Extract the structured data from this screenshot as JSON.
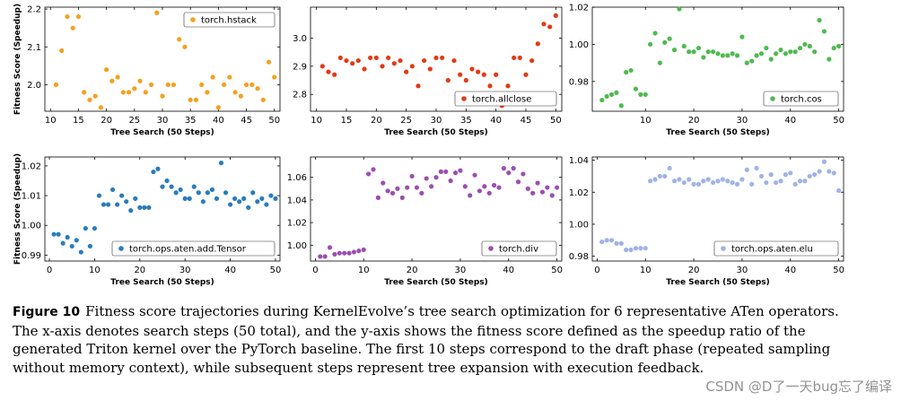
{
  "caption": {
    "label": "Figure 10",
    "text": "Fitness score trajectories during KernelEvolve’s tree search optimization for 6 representative ATen operators. The x-axis denotes search steps (50 total), and the y-axis shows the fitness score defined as the speedup ratio of the generated Triton kernel over the PyTorch baseline. The first 10 steps correspond to the draft phase (repeated sampling without memory context), while subsequent steps represent tree expansion with execution feedback."
  },
  "watermark": "CSDN @D了一天bug忘了编译",
  "chart_data": [
    {
      "type": "scatter",
      "name": "torch.hstack",
      "color": "#f5a01d",
      "xlabel": "Tree Search (50 Steps)",
      "ylabel": "Fitness Score (Speedup)",
      "xlim": [
        9,
        51
      ],
      "ylim": [
        1.93,
        2.205
      ],
      "xticks": [
        10,
        15,
        20,
        25,
        30,
        35,
        40,
        45,
        50
      ],
      "yticks": [
        2.0,
        2.1,
        2.2
      ],
      "ytick_labels": [
        "2.0",
        "2.1",
        "2.2"
      ],
      "legend_pos": "top-right",
      "x": [
        11,
        12,
        13,
        14,
        15,
        16,
        17,
        18,
        19,
        20,
        21,
        22,
        23,
        24,
        25,
        26,
        27,
        28,
        29,
        30,
        31,
        32,
        33,
        34,
        35,
        36,
        37,
        38,
        39,
        40,
        41,
        42,
        43,
        44,
        45,
        46,
        47,
        48,
        49,
        50
      ],
      "y": [
        2.0,
        2.09,
        2.18,
        2.15,
        2.18,
        1.98,
        1.96,
        1.97,
        1.94,
        2.04,
        2.01,
        2.02,
        1.98,
        1.98,
        1.99,
        2.01,
        1.98,
        2.0,
        2.19,
        1.97,
        2.0,
        2.0,
        2.12,
        2.1,
        1.96,
        1.96,
        2.0,
        1.98,
        2.02,
        1.94,
        2.0,
        2.02,
        1.98,
        1.97,
        2.0,
        2.0,
        1.99,
        1.96,
        2.06,
        2.02
      ]
    },
    {
      "type": "scatter",
      "name": "torch.allclose",
      "color": "#e23a16",
      "xlabel": "Tree Search (50 Steps)",
      "ylabel": "",
      "xlim": [
        9,
        51
      ],
      "ylim": [
        2.74,
        3.11
      ],
      "xticks": [
        10,
        15,
        20,
        25,
        30,
        35,
        40,
        45,
        50
      ],
      "yticks": [
        2.8,
        2.9,
        3.0
      ],
      "ytick_labels": [
        "2.8",
        "2.9",
        "3.0"
      ],
      "legend_pos": "bottom-right",
      "x": [
        11,
        12,
        13,
        14,
        15,
        16,
        17,
        18,
        19,
        20,
        21,
        22,
        23,
        24,
        25,
        26,
        27,
        28,
        29,
        30,
        31,
        32,
        33,
        34,
        35,
        36,
        37,
        38,
        39,
        40,
        41,
        42,
        43,
        44,
        45,
        46,
        47,
        48,
        49,
        50
      ],
      "y": [
        2.9,
        2.88,
        2.87,
        2.93,
        2.92,
        2.91,
        2.92,
        2.89,
        2.93,
        2.93,
        2.9,
        2.93,
        2.91,
        2.92,
        2.88,
        2.9,
        2.83,
        2.92,
        2.89,
        2.93,
        2.93,
        2.85,
        2.92,
        2.87,
        2.85,
        2.89,
        2.88,
        2.87,
        2.83,
        2.87,
        2.76,
        2.83,
        2.93,
        2.93,
        2.87,
        2.92,
        2.98,
        3.05,
        3.04,
        3.08
      ]
    },
    {
      "type": "scatter",
      "name": "torch.cos",
      "color": "#4fba50",
      "xlabel": "Tree Search (50 Steps)",
      "ylabel": "",
      "xlim": [
        -1,
        51
      ],
      "ylim": [
        0.964,
        1.02
      ],
      "xticks": [
        10,
        20,
        30,
        40,
        50
      ],
      "yticks": [
        0.98,
        1.0,
        1.02
      ],
      "ytick_labels": [
        "0.98",
        "1.00",
        "1.02"
      ],
      "legend_pos": "bottom-right",
      "x": [
        1,
        2,
        3,
        4,
        5,
        6,
        7,
        8,
        9,
        10,
        11,
        12,
        13,
        14,
        15,
        16,
        17,
        18,
        19,
        20,
        21,
        22,
        23,
        24,
        25,
        26,
        27,
        28,
        29,
        30,
        31,
        32,
        33,
        34,
        35,
        36,
        37,
        38,
        39,
        40,
        41,
        42,
        43,
        44,
        45,
        46,
        47,
        48,
        49,
        50
      ],
      "y": [
        0.97,
        0.972,
        0.973,
        0.974,
        0.967,
        0.985,
        0.986,
        0.976,
        0.973,
        0.973,
        1.0,
        1.006,
        0.99,
        1.001,
        1.003,
        0.997,
        1.019,
        0.999,
        0.996,
        0.996,
        0.998,
        0.993,
        0.996,
        0.996,
        0.995,
        0.994,
        0.994,
        0.995,
        0.994,
        1.004,
        0.99,
        0.991,
        0.994,
        0.995,
        0.998,
        0.992,
        0.995,
        0.997,
        0.995,
        0.996,
        0.996,
        0.998,
        1.0,
        0.999,
        0.996,
        1.013,
        1.007,
        0.992,
        0.998,
        0.999
      ]
    },
    {
      "type": "scatter",
      "name": "torch.ops.aten.add.Tensor",
      "color": "#2b7cbd",
      "xlabel": "Tree Search (50 Steps)",
      "ylabel": "Fitness Score (Speedup)",
      "xlim": [
        -1,
        51
      ],
      "ylim": [
        0.988,
        1.023
      ],
      "xticks": [
        0,
        10,
        20,
        30,
        40,
        50
      ],
      "yticks": [
        0.99,
        1.0,
        1.01,
        1.02
      ],
      "ytick_labels": [
        "0.99",
        "1.00",
        "1.01",
        "1.02"
      ],
      "legend_pos": "bottom-right",
      "x": [
        1,
        2,
        3,
        4,
        5,
        6,
        7,
        8,
        9,
        10,
        11,
        12,
        13,
        14,
        15,
        16,
        17,
        18,
        19,
        20,
        21,
        22,
        23,
        24,
        25,
        26,
        27,
        28,
        29,
        30,
        31,
        32,
        33,
        34,
        35,
        36,
        37,
        38,
        39,
        40,
        41,
        42,
        43,
        44,
        45,
        46,
        47,
        48,
        49,
        50
      ],
      "y": [
        0.997,
        0.997,
        0.994,
        0.996,
        0.993,
        0.995,
        0.991,
        0.999,
        0.993,
        0.999,
        1.01,
        1.007,
        1.007,
        1.012,
        1.007,
        1.01,
        1.008,
        1.005,
        1.009,
        1.006,
        1.006,
        1.006,
        1.018,
        1.019,
        1.013,
        1.015,
        1.013,
        1.011,
        1.012,
        1.009,
        1.009,
        1.013,
        1.011,
        1.008,
        1.011,
        1.012,
        1.009,
        1.021,
        1.011,
        1.007,
        1.009,
        1.008,
        1.009,
        1.006,
        1.011,
        1.008,
        1.009,
        1.007,
        1.01,
        1.009
      ]
    },
    {
      "type": "scatter",
      "name": "torch.div",
      "color": "#9b4fb2",
      "xlabel": "Tree Search (50 Steps)",
      "ylabel": "",
      "xlim": [
        -1,
        51
      ],
      "ylim": [
        0.986,
        1.078
      ],
      "xticks": [
        0,
        10,
        20,
        30,
        40,
        50
      ],
      "yticks": [
        1.0,
        1.02,
        1.04,
        1.06
      ],
      "ytick_labels": [
        "1.00",
        "1.02",
        "1.04",
        "1.06"
      ],
      "legend_pos": "bottom-right",
      "x": [
        1,
        2,
        3,
        4,
        5,
        6,
        7,
        8,
        9,
        10,
        11,
        12,
        13,
        14,
        15,
        16,
        17,
        18,
        19,
        20,
        21,
        22,
        23,
        24,
        25,
        26,
        27,
        28,
        29,
        30,
        31,
        32,
        33,
        34,
        35,
        36,
        37,
        38,
        39,
        40,
        41,
        42,
        43,
        44,
        45,
        46,
        47,
        48,
        49,
        50
      ],
      "y": [
        0.99,
        0.99,
        0.998,
        0.992,
        0.993,
        0.993,
        0.993,
        0.994,
        0.995,
        0.996,
        1.063,
        1.067,
        1.042,
        1.055,
        1.048,
        1.046,
        1.05,
        1.042,
        1.051,
        1.061,
        1.051,
        1.046,
        1.059,
        1.052,
        1.06,
        1.065,
        1.065,
        1.057,
        1.064,
        1.066,
        1.052,
        1.044,
        1.062,
        1.048,
        1.052,
        1.046,
        1.053,
        1.051,
        1.068,
        1.064,
        1.068,
        1.056,
        1.063,
        1.05,
        1.046,
        1.055,
        1.047,
        1.051,
        1.044,
        1.051
      ]
    },
    {
      "type": "scatter",
      "name": "torch.ops.aten.elu",
      "color": "#9fb3e6",
      "xlabel": "Tree Search (50 Steps)",
      "ylabel": "",
      "xlim": [
        -1,
        51
      ],
      "ylim": [
        0.977,
        1.042
      ],
      "xticks": [
        0,
        10,
        20,
        30,
        40,
        50
      ],
      "yticks": [
        0.98,
        1.0,
        1.02,
        1.04
      ],
      "ytick_labels": [
        "0.98",
        "1.00",
        "1.02",
        "1.04"
      ],
      "legend_pos": "bottom-right",
      "x": [
        1,
        2,
        3,
        4,
        5,
        6,
        7,
        8,
        9,
        10,
        11,
        12,
        13,
        14,
        15,
        16,
        17,
        18,
        19,
        20,
        21,
        22,
        23,
        24,
        25,
        26,
        27,
        28,
        29,
        30,
        31,
        32,
        33,
        34,
        35,
        36,
        37,
        38,
        39,
        40,
        41,
        42,
        43,
        44,
        45,
        46,
        47,
        48,
        49,
        50
      ],
      "y": [
        0.989,
        0.99,
        0.99,
        0.988,
        0.988,
        0.984,
        0.984,
        0.985,
        0.985,
        0.985,
        1.027,
        1.028,
        1.03,
        1.03,
        1.035,
        1.027,
        1.028,
        1.026,
        1.028,
        1.025,
        1.025,
        1.027,
        1.028,
        1.026,
        1.027,
        1.028,
        1.027,
        1.026,
        1.025,
        1.028,
        1.034,
        1.025,
        1.035,
        1.03,
        1.026,
        1.031,
        1.026,
        1.027,
        1.031,
        1.032,
        1.025,
        1.027,
        1.027,
        1.03,
        1.031,
        1.033,
        1.039,
        1.033,
        1.032,
        1.021
      ]
    }
  ]
}
